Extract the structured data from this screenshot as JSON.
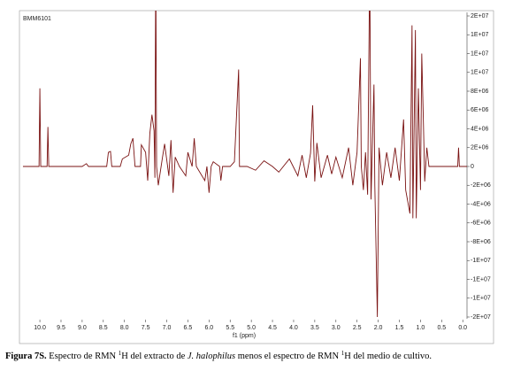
{
  "chart_data": {
    "type": "line",
    "title": "BMM6101",
    "x_label": "f1 (ppm)",
    "color": "#7a1212",
    "xlim": [
      10.42,
      -0.1
    ],
    "xticks": [
      {
        "value": 10,
        "label": "10.0"
      },
      9.5,
      {
        "value": 9,
        "label": "9.0"
      },
      8.5,
      {
        "value": 8,
        "label": "8.0"
      },
      7.5,
      {
        "value": 7,
        "label": "7.0"
      },
      6.5,
      {
        "value": 6,
        "label": "6.0"
      },
      5.5,
      {
        "value": 5,
        "label": "5.0"
      },
      4.5,
      {
        "value": 4,
        "label": "4.0"
      },
      3.5,
      {
        "value": 3,
        "label": "3.0"
      },
      2.5,
      {
        "value": 2,
        "label": "2.0"
      },
      1.5,
      {
        "value": 1,
        "label": "1.0"
      },
      0.5,
      {
        "value": 0,
        "label": "0.0"
      }
    ],
    "ylim": [
      -16000000,
      16000000
    ],
    "yticks": [
      {
        "value": 16000000,
        "label": "2E+07"
      },
      {
        "value": 14000000,
        "label": "1E+07"
      },
      {
        "value": 12000000,
        "label": "1E+07"
      },
      {
        "value": 10000000,
        "label": "1E+07"
      },
      {
        "value": 8000000,
        "label": "8E+06"
      },
      {
        "value": 6000000,
        "label": "6E+06"
      },
      {
        "value": 4000000,
        "label": "4E+06"
      },
      {
        "value": 2000000,
        "label": "2E+06"
      },
      0,
      {
        "value": -2000000,
        "label": "-2E+06"
      },
      {
        "value": -4000000,
        "label": "-4E+06"
      },
      {
        "value": -6000000,
        "label": "-6E+06"
      },
      {
        "value": -8000000,
        "label": "-8E+06"
      },
      {
        "value": -10000000,
        "label": "-1E+07"
      },
      {
        "value": -12000000,
        "label": "-1E+07"
      },
      {
        "value": -14000000,
        "label": "-1E+07"
      },
      {
        "value": -16000000,
        "label": "-2E+07"
      }
    ],
    "x": [
      10.4,
      10.02,
      10.0,
      9.98,
      9.83,
      9.81,
      9.79,
      9.0,
      8.9,
      8.85,
      8.42,
      8.38,
      8.33,
      8.3,
      8.1,
      8.05,
      7.9,
      7.85,
      7.8,
      7.75,
      7.62,
      7.6,
      7.5,
      7.45,
      7.4,
      7.35,
      7.3,
      7.28,
      7.26,
      7.24,
      7.2,
      7.1,
      7.05,
      6.95,
      6.9,
      6.85,
      6.8,
      6.7,
      6.55,
      6.5,
      6.4,
      6.35,
      6.3,
      6.1,
      6.05,
      6.0,
      5.95,
      5.9,
      5.75,
      5.72,
      5.68,
      5.5,
      5.4,
      5.3,
      5.28,
      5.1,
      4.9,
      4.7,
      4.5,
      4.35,
      4.1,
      3.9,
      3.8,
      3.7,
      3.6,
      3.55,
      3.5,
      3.45,
      3.35,
      3.2,
      3.1,
      3.0,
      2.85,
      2.7,
      2.6,
      2.5,
      2.42,
      2.4,
      2.35,
      2.3,
      2.25,
      2.2,
      2.17,
      2.1,
      2.08,
      2.02,
      1.98,
      1.9,
      1.8,
      1.7,
      1.6,
      1.5,
      1.4,
      1.35,
      1.25,
      1.2,
      1.18,
      1.12,
      1.1,
      1.05,
      1.0,
      0.97,
      0.93,
      0.9,
      0.85,
      0.8,
      0.6,
      0.12,
      0.1,
      0.08,
      -0.1
    ],
    "values": [
      0,
      0,
      8300000,
      0,
      0,
      4200000,
      0,
      0,
      300000,
      0,
      0,
      1500000,
      1600000,
      0,
      0,
      800000,
      1200000,
      2400000,
      3000000,
      0,
      0,
      2300000,
      1500000,
      -1500000,
      3500000,
      5500000,
      3800000,
      -1200000,
      22000000,
      0,
      -2000000,
      1000000,
      2400000,
      -1000000,
      2800000,
      -2800000,
      1000000,
      0,
      -1000000,
      1500000,
      0,
      3000000,
      0,
      -1500000,
      0,
      -2800000,
      0,
      500000,
      0,
      -1500000,
      0,
      0,
      500000,
      10300000,
      0,
      0,
      -400000,
      600000,
      0,
      -600000,
      800000,
      -1000000,
      1200000,
      -1200000,
      1400000,
      6500000,
      -1600000,
      2500000,
      -1200000,
      1200000,
      -800000,
      1000000,
      -1200000,
      2000000,
      -2000000,
      1500000,
      11500000,
      0,
      -2500000,
      1500000,
      -3000000,
      22000000,
      -3500000,
      8700000,
      -2000000,
      -16000000,
      2000000,
      -2000000,
      1500000,
      -1200000,
      2000000,
      -1500000,
      5000000,
      -2500000,
      -5000000,
      15000000,
      -5500000,
      14500000,
      -5500000,
      8300000,
      -2500000,
      12000000,
      4500000,
      -1600000,
      2000000,
      0,
      0,
      0,
      2000000,
      0,
      0
    ]
  },
  "caption": {
    "label": "Figura 7S.",
    "parts": [
      "Espectro de RMN ",
      "1",
      "H del extracto de ",
      "J. halophilus",
      " menos el espectro de RMN ",
      "1",
      "H del medio de cultivo."
    ]
  }
}
